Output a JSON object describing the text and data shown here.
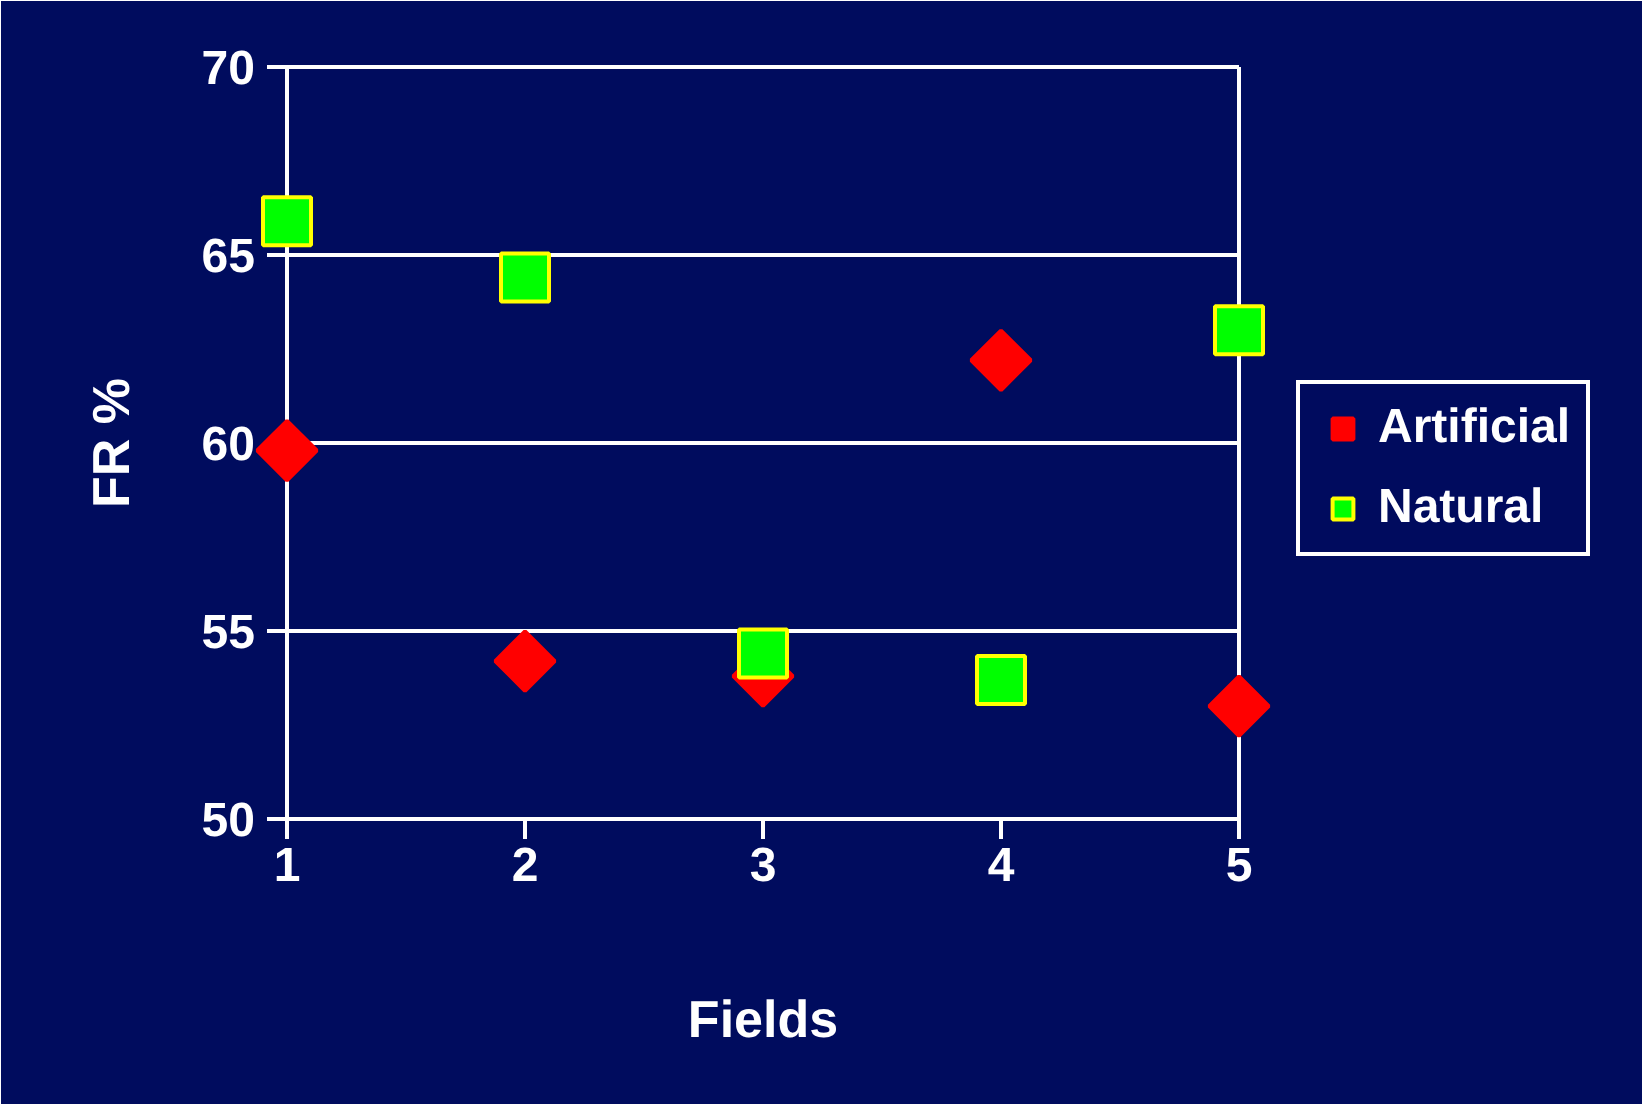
{
  "chart_data": {
    "type": "scatter",
    "xlabel": "Fields",
    "ylabel": "FR %",
    "x": [
      1,
      2,
      3,
      4,
      5
    ],
    "xlim": [
      1,
      5
    ],
    "xticks": [
      1,
      2,
      3,
      4,
      5
    ],
    "ylim": [
      50,
      70
    ],
    "yticks": [
      50,
      55,
      60,
      65,
      70
    ],
    "grid": "y",
    "legend": "right",
    "series": [
      {
        "name": "Artificial",
        "color": "#ff0000",
        "marker": "diamond",
        "values": [
          59.8,
          54.2,
          53.8,
          62.2,
          53.0
        ]
      },
      {
        "name": "Natural",
        "color": "#00ff00",
        "marker": "square",
        "values": [
          65.9,
          64.4,
          54.4,
          53.7,
          63.0
        ]
      }
    ]
  }
}
